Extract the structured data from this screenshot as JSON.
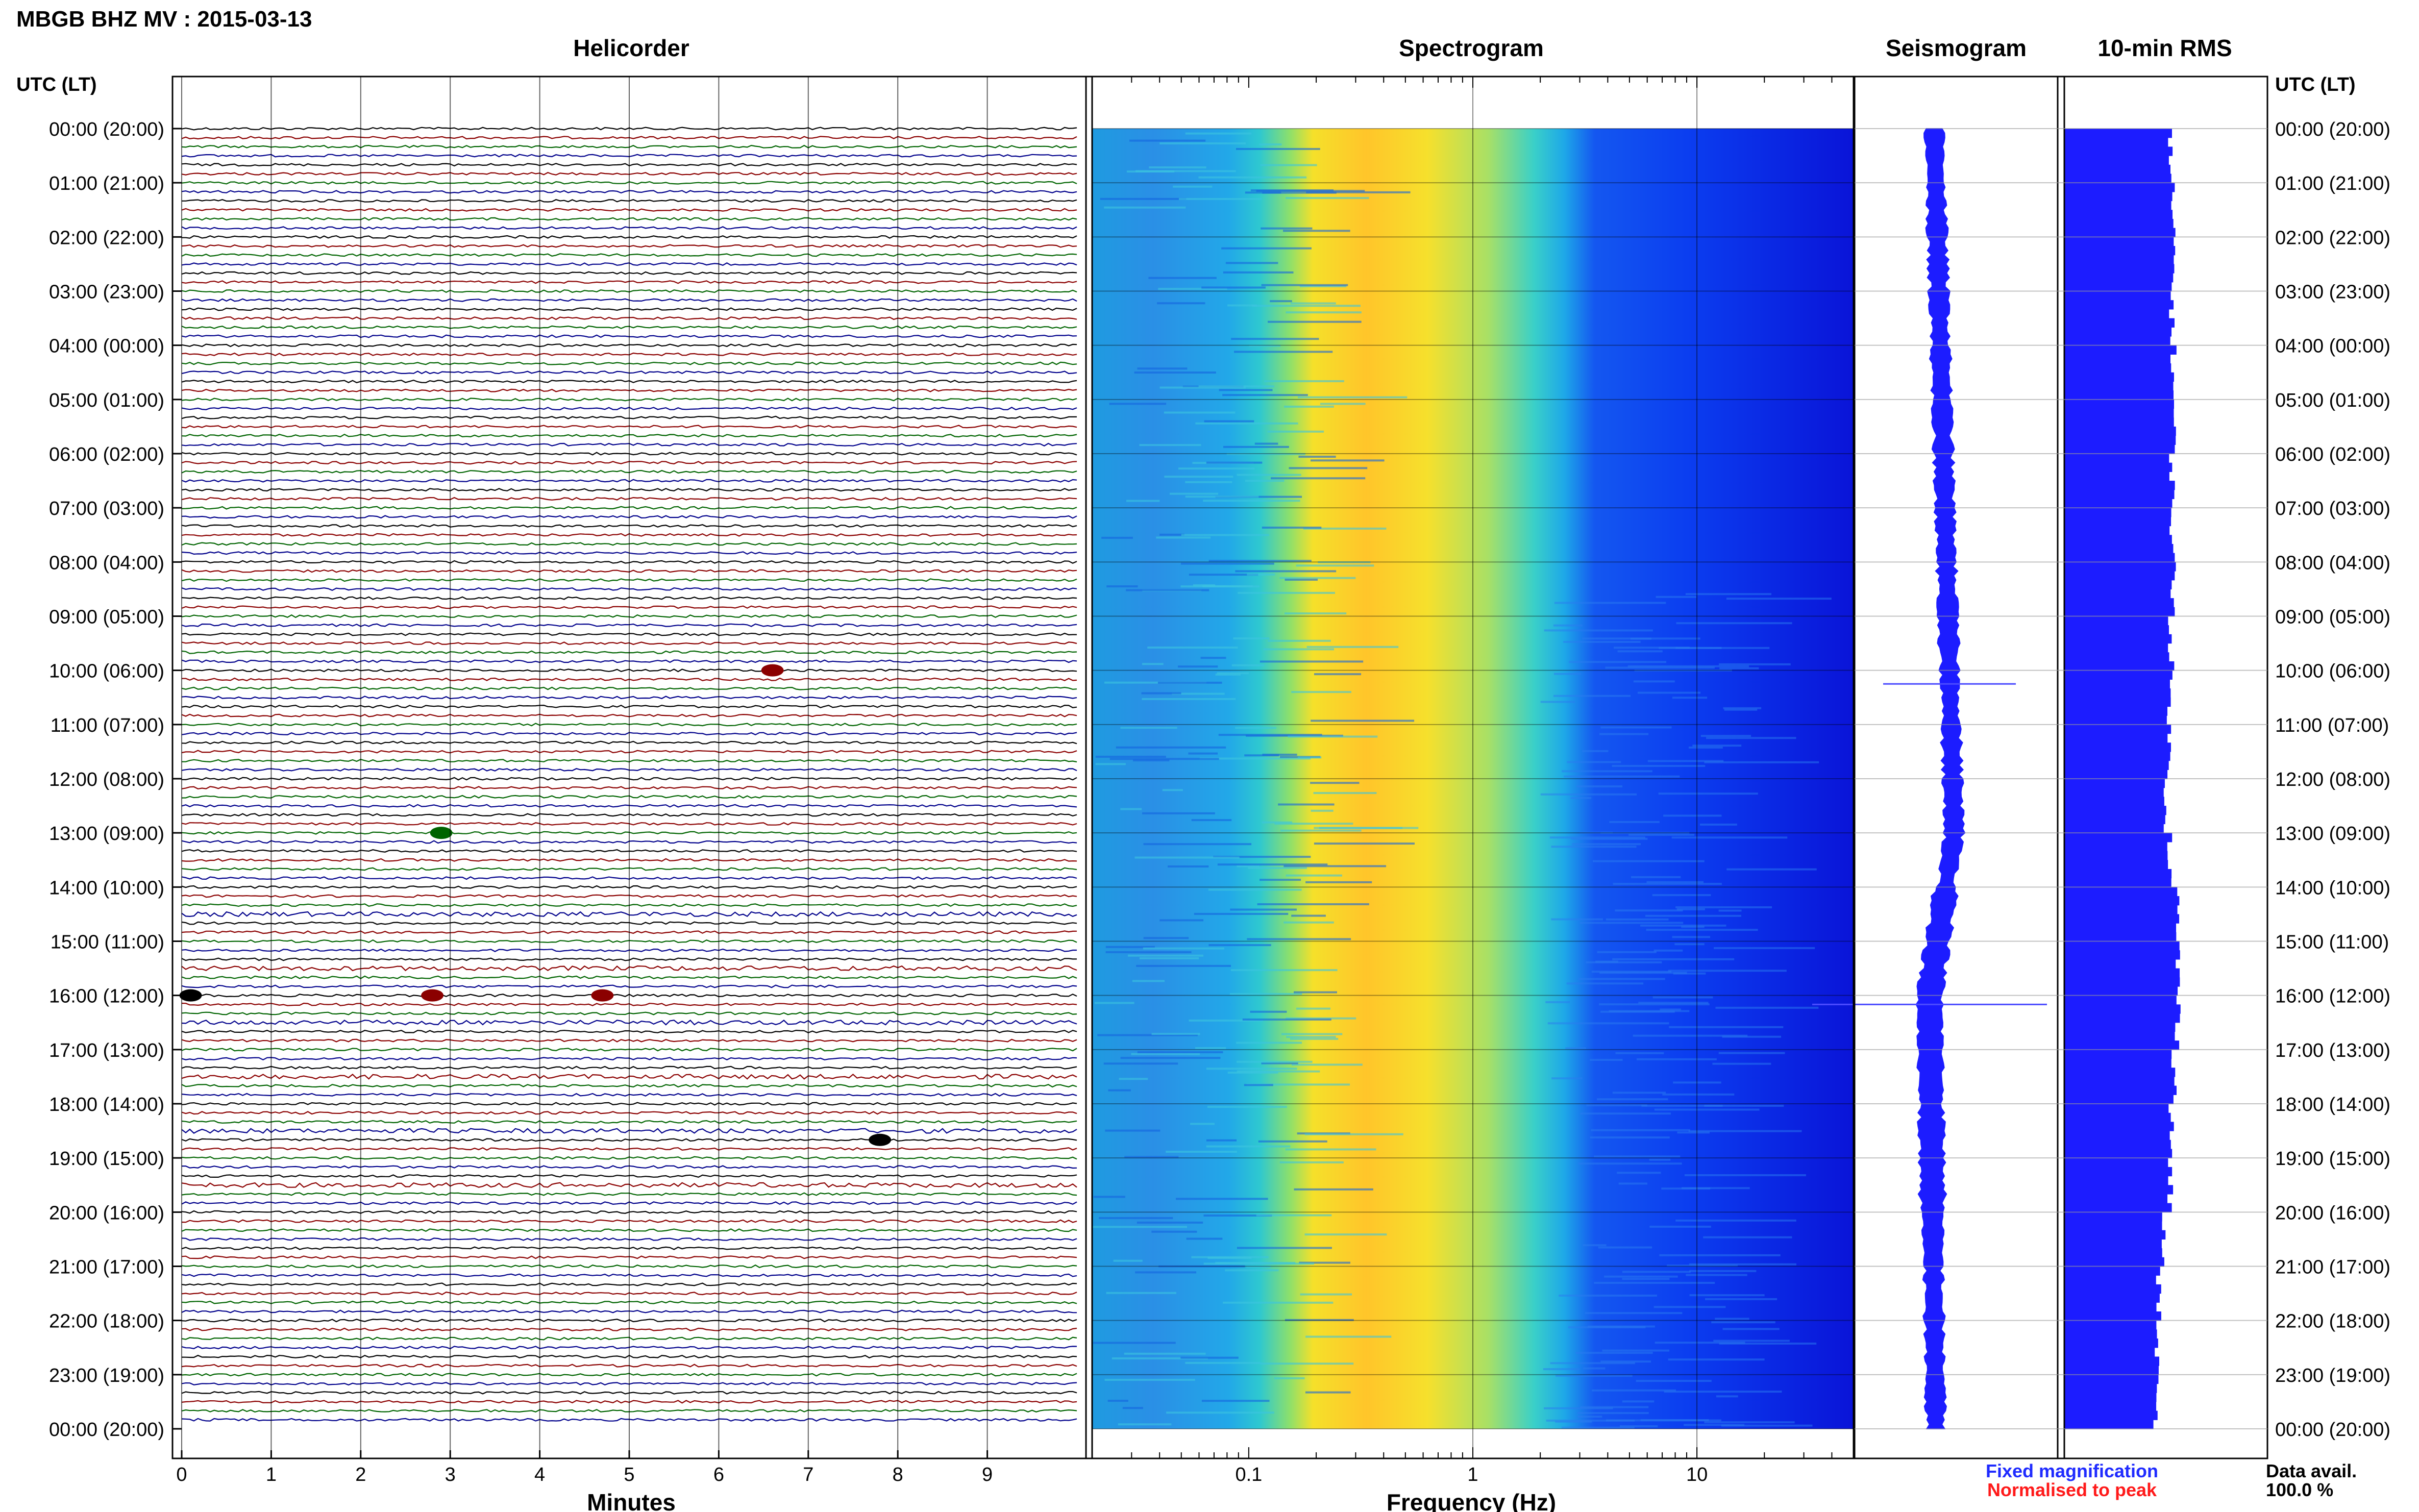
{
  "title": "MBGB BHZ MV : 2015-03-13",
  "panels": {
    "helicorder": "Helicorder",
    "spectrogram": "Spectrogram",
    "seismogram": "Seismogram",
    "rms": "10-min RMS"
  },
  "time_axis_header": "UTC (LT)",
  "time_labels": [
    "00:00 (20:00)",
    "01:00 (21:00)",
    "02:00 (22:00)",
    "03:00 (23:00)",
    "04:00 (00:00)",
    "05:00 (01:00)",
    "06:00 (02:00)",
    "07:00 (03:00)",
    "08:00 (04:00)",
    "09:00 (05:00)",
    "10:00 (06:00)",
    "11:00 (07:00)",
    "12:00 (08:00)",
    "13:00 (09:00)",
    "14:00 (10:00)",
    "15:00 (11:00)",
    "16:00 (12:00)",
    "17:00 (13:00)",
    "18:00 (14:00)",
    "19:00 (15:00)",
    "20:00 (16:00)",
    "21:00 (17:00)",
    "22:00 (18:00)",
    "23:00 (19:00)",
    "00:00 (20:00)"
  ],
  "helicorder_xaxis": {
    "label": "Minutes",
    "ticks": [
      "0",
      "1",
      "2",
      "3",
      "4",
      "5",
      "6",
      "7",
      "8",
      "9"
    ]
  },
  "spectrogram_xaxis": {
    "label": "Frequency (Hz)",
    "scale": "log",
    "ticks": [
      "0.1",
      "1",
      "10"
    ],
    "range_hz": [
      0.02,
      50
    ]
  },
  "legend": {
    "fixed": "Fixed magnification",
    "normalised": "Normalised to peak",
    "fixed_color": "#1f2bff",
    "normalised_color": "#ff1a1a"
  },
  "data_avail_label": "Data avail.",
  "data_avail_value": "100.0 %",
  "colors": {
    "trace_cycle": [
      "#000000",
      "#8b0000",
      "#006400",
      "#00008b"
    ],
    "bars": "#1c1cff"
  },
  "chart_data": [
    {
      "type": "line",
      "name": "helicorder",
      "x_unit": "minutes",
      "xlim": [
        0,
        10
      ],
      "rows": 144,
      "minutes_per_row": 10,
      "events": [
        {
          "time_utc": "10:00",
          "minute": 6.6,
          "color": "#8b0000"
        },
        {
          "time_utc": "13:00",
          "minute": 2.9,
          "color": "#006400"
        },
        {
          "time_utc": "16:00",
          "minute": 0.1,
          "color": "#000000"
        },
        {
          "time_utc": "16:00",
          "minute": 2.8,
          "color": "#8b0000"
        },
        {
          "time_utc": "16:00",
          "minute": 4.7,
          "color": "#8b0000"
        },
        {
          "time_utc": "18:40",
          "minute": 7.8,
          "color": "#000000"
        }
      ]
    },
    {
      "type": "heatmap",
      "name": "spectrogram",
      "x_scale": "log",
      "x_range_hz": [
        0.02,
        50
      ],
      "peak_band_hz": [
        0.15,
        0.6
      ],
      "hours": 24
    },
    {
      "type": "line",
      "name": "seismogram",
      "hours": 24,
      "spikes_utc": [
        "10:15",
        "16:10"
      ]
    },
    {
      "type": "bar",
      "name": "10-min RMS",
      "orientation": "horizontal",
      "bins": 144,
      "relative_amplitude_by_hour": [
        0.92,
        0.94,
        0.95,
        0.94,
        0.95,
        0.95,
        0.94,
        0.94,
        0.95,
        0.93,
        0.92,
        0.91,
        0.89,
        0.92,
        0.98,
        0.99,
        0.99,
        0.96,
        0.93,
        0.92,
        0.86,
        0.82,
        0.81,
        0.8
      ]
    }
  ]
}
